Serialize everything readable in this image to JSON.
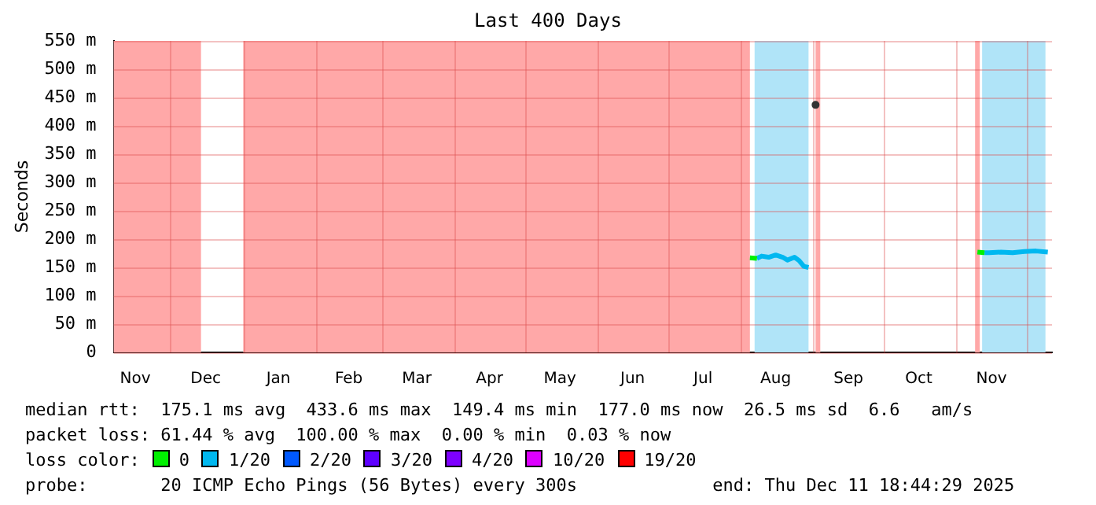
{
  "chart_data": {
    "type": "line",
    "title": "Last 400 Days",
    "ylabel": "Seconds",
    "legend_title": "loss color:",
    "legend": "bottom",
    "grid": true,
    "line_style": "solid",
    "xlim": [
      "2024-11-06T18:44",
      "2025-12-11T18:44"
    ],
    "xticks": [
      {
        "value": "2024-11-16",
        "label": "Nov"
      },
      {
        "value": "2024-12-01",
        "label": null
      },
      {
        "value": "2024-12-16",
        "label": "Dec"
      },
      {
        "value": "2025-01-01",
        "label": null
      },
      {
        "value": "2025-01-16",
        "label": "Jan"
      },
      {
        "value": "2025-02-01",
        "label": null
      },
      {
        "value": "2025-02-15",
        "label": "Feb"
      },
      {
        "value": "2025-03-01",
        "label": null
      },
      {
        "value": "2025-03-16",
        "label": "Mar"
      },
      {
        "value": "2025-04-01",
        "label": null
      },
      {
        "value": "2025-04-16",
        "label": "Apr"
      },
      {
        "value": "2025-05-01",
        "label": null
      },
      {
        "value": "2025-05-16",
        "label": "May"
      },
      {
        "value": "2025-06-01",
        "label": null
      },
      {
        "value": "2025-06-16",
        "label": "Jun"
      },
      {
        "value": "2025-07-01",
        "label": null
      },
      {
        "value": "2025-07-16",
        "label": "Jul"
      },
      {
        "value": "2025-08-01",
        "label": null
      },
      {
        "value": "2025-08-16",
        "label": "Aug"
      },
      {
        "value": "2025-09-01",
        "label": null
      },
      {
        "value": "2025-09-16",
        "label": "Sep"
      },
      {
        "value": "2025-10-01",
        "label": null
      },
      {
        "value": "2025-10-16",
        "label": "Oct"
      },
      {
        "value": "2025-11-01",
        "label": null
      },
      {
        "value": "2025-11-16",
        "label": "Nov"
      },
      {
        "value": "2025-12-01",
        "label": null
      }
    ],
    "ylim": [
      0,
      550
    ],
    "yticks": [
      {
        "value": 0,
        "label": "0"
      },
      {
        "value": 50,
        "label": "50 m"
      },
      {
        "value": 100,
        "label": "100 m"
      },
      {
        "value": 150,
        "label": "150 m"
      },
      {
        "value": 200,
        "label": "200 m"
      },
      {
        "value": 250,
        "label": "250 m"
      },
      {
        "value": 300,
        "label": "300 m"
      },
      {
        "value": 350,
        "label": "350 m"
      },
      {
        "value": 400,
        "label": "400 m"
      },
      {
        "value": 450,
        "label": "450 m"
      },
      {
        "value": 500,
        "label": "500 m"
      },
      {
        "value": 550,
        "label": "550 m"
      }
    ],
    "bands": [
      {
        "axis": "x",
        "from": "2024-11-06T18:44",
        "to": "2024-12-14",
        "color": "#ffa8a8"
      },
      {
        "axis": "x",
        "from": "2025-01-01",
        "to": "2025-08-05",
        "color": "#ffa8a8"
      },
      {
        "axis": "x",
        "from": "2025-08-07",
        "to": "2025-08-30",
        "color": "#b0e4f8"
      },
      {
        "axis": "x",
        "from": "2025-09-02",
        "to": "2025-09-04",
        "color": "#ffa8a8"
      },
      {
        "axis": "x",
        "from": "2025-11-09",
        "to": "2025-11-11",
        "color": "#ffa8a8"
      },
      {
        "axis": "x",
        "from": "2025-11-12",
        "to": "2025-12-09",
        "color": "#b0e4f8"
      }
    ],
    "x": [
      "2025-08-05",
      "2025-08-08",
      "2025-08-10",
      "2025-08-13",
      "2025-08-16",
      "2025-08-19",
      "2025-08-21",
      "2025-08-24",
      "2025-08-26",
      "2025-08-28",
      "2025-08-30",
      "2025-09-02",
      "2025-09-15",
      "2025-11-10",
      "2025-11-13",
      "2025-11-15",
      "2025-11-20",
      "2025-11-25",
      "2025-11-30",
      "2025-12-05",
      "2025-12-10"
    ],
    "series": [
      {
        "name": "0",
        "color": "#00f000",
        "values": [
          167,
          166,
          null,
          null,
          null,
          null,
          null,
          null,
          null,
          null,
          null,
          null,
          null,
          177,
          176,
          null,
          null,
          null,
          null,
          null,
          null
        ]
      },
      {
        "name": "1/20",
        "color": "#00b8f0",
        "values": [
          null,
          166,
          170,
          168,
          172,
          168,
          163,
          168,
          162,
          152,
          150,
          null,
          null,
          null,
          176,
          176,
          177,
          176,
          178,
          179,
          177
        ]
      },
      {
        "name": "2/20",
        "color": "#0059ff",
        "values": [
          null,
          null,
          null,
          null,
          null,
          null,
          null,
          null,
          null,
          null,
          null,
          null,
          null,
          null,
          null,
          null,
          null,
          null,
          null,
          null,
          null
        ]
      },
      {
        "name": "3/20",
        "color": "#5e00ff",
        "values": [
          null,
          null,
          null,
          null,
          null,
          null,
          null,
          null,
          null,
          null,
          null,
          null,
          null,
          null,
          null,
          null,
          null,
          null,
          null,
          null,
          null
        ]
      },
      {
        "name": "4/20",
        "color": "#7e00ff",
        "values": [
          null,
          null,
          null,
          null,
          null,
          null,
          null,
          null,
          null,
          null,
          null,
          null,
          null,
          null,
          null,
          null,
          null,
          null,
          null,
          null,
          null
        ]
      },
      {
        "name": "10/20",
        "color": "#dd00ff",
        "values": [
          null,
          null,
          null,
          null,
          null,
          null,
          null,
          null,
          null,
          null,
          null,
          null,
          null,
          null,
          null,
          null,
          null,
          null,
          null,
          null,
          null
        ]
      },
      {
        "name": "19/20",
        "color": "#ff0000",
        "values": [
          null,
          null,
          null,
          null,
          null,
          null,
          null,
          null,
          null,
          null,
          null,
          null,
          null,
          null,
          null,
          null,
          null,
          null,
          null,
          null,
          null
        ]
      },
      {
        "type": "scatter",
        "color": "#333333",
        "values": [
          null,
          null,
          null,
          null,
          null,
          null,
          null,
          null,
          null,
          null,
          null,
          437,
          null,
          null,
          null,
          null,
          null,
          null,
          null,
          null,
          null
        ]
      }
    ],
    "annotations": [
      "median rtt:  175.1 ms avg  433.6 ms max  149.4 ms min  177.0 ms now  26.5 ms sd  6.6   am/s",
      "packet loss: 61.44 % avg  100.00 % max  0.00 % min  0.03 % now",
      "probe:       20 ICMP Echo Pings (56 Bytes) every 300s             end: Thu Dec 11 18:44:29 2025"
    ]
  }
}
